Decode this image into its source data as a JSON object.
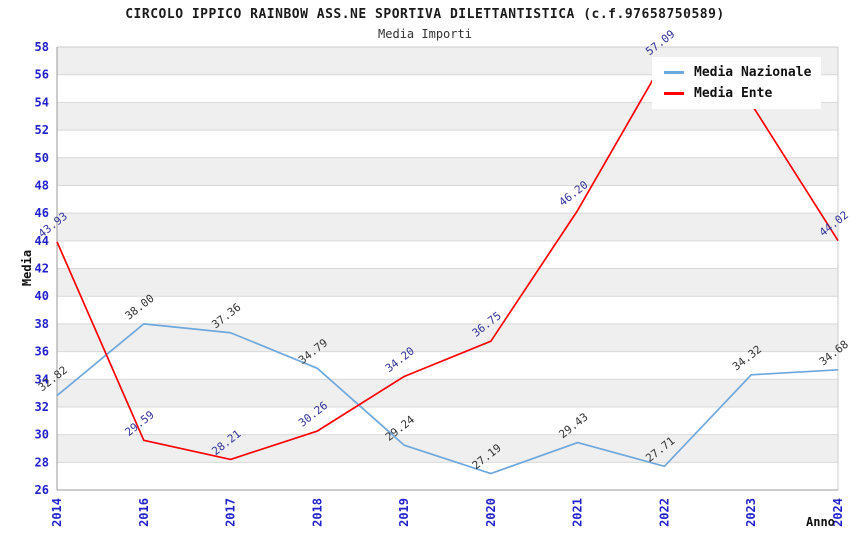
{
  "title": "CIRCOLO IPPICO RAINBOW ASS.NE SPORTIVA DILETTANTISTICA (c.f.97658750589)",
  "subtitle": "Media Importi",
  "y_axis_title": "Media",
  "x_axis_title": "Anno",
  "colors": {
    "tick_label": "#2222CC",
    "band_gray": "#EFEFEF",
    "grid_line": "#D9D9D9",
    "axis_line": "#999999",
    "frame_light": "#CCCCCC",
    "nazionale_line": "#6FA8DC",
    "ente_line": "#FF0000",
    "nazionale_point_label": "#333333",
    "ente_point_label": "#333399"
  },
  "chart_data": {
    "type": "line",
    "title": "Media Importi",
    "xlabel": "Anno",
    "ylabel": "Media",
    "categories": [
      "2014",
      "2016",
      "2017",
      "2018",
      "2019",
      "2020",
      "2021",
      "2022",
      "2023",
      "2024"
    ],
    "series": [
      {
        "name": "Media Nazionale",
        "color": "#6FA8DC",
        "label_color": "#333333",
        "values": [
          32.82,
          38.0,
          37.36,
          34.79,
          29.24,
          27.19,
          29.43,
          27.71,
          34.32,
          34.68
        ],
        "labels": [
          "32.82",
          "38.00",
          "37.36",
          "34.79",
          "29.24",
          "27.19",
          "29.43",
          "27.71",
          "34.32",
          "34.68"
        ]
      },
      {
        "name": "Media Ente",
        "color": "#FF0000",
        "label_color": "#333399",
        "values": [
          43.93,
          29.59,
          28.21,
          30.26,
          34.2,
          36.75,
          46.2,
          57.09,
          53.9,
          44.02
        ],
        "labels": [
          "43.93",
          "29.59",
          "28.21",
          "30.26",
          "34.20",
          "36.75",
          "46.20",
          "57.09",
          null,
          "44.02"
        ]
      }
    ],
    "ylim": [
      26,
      58
    ],
    "ytick_step": 2,
    "grid": "horizontal-bands-alternating",
    "legend_position": "top-right"
  }
}
